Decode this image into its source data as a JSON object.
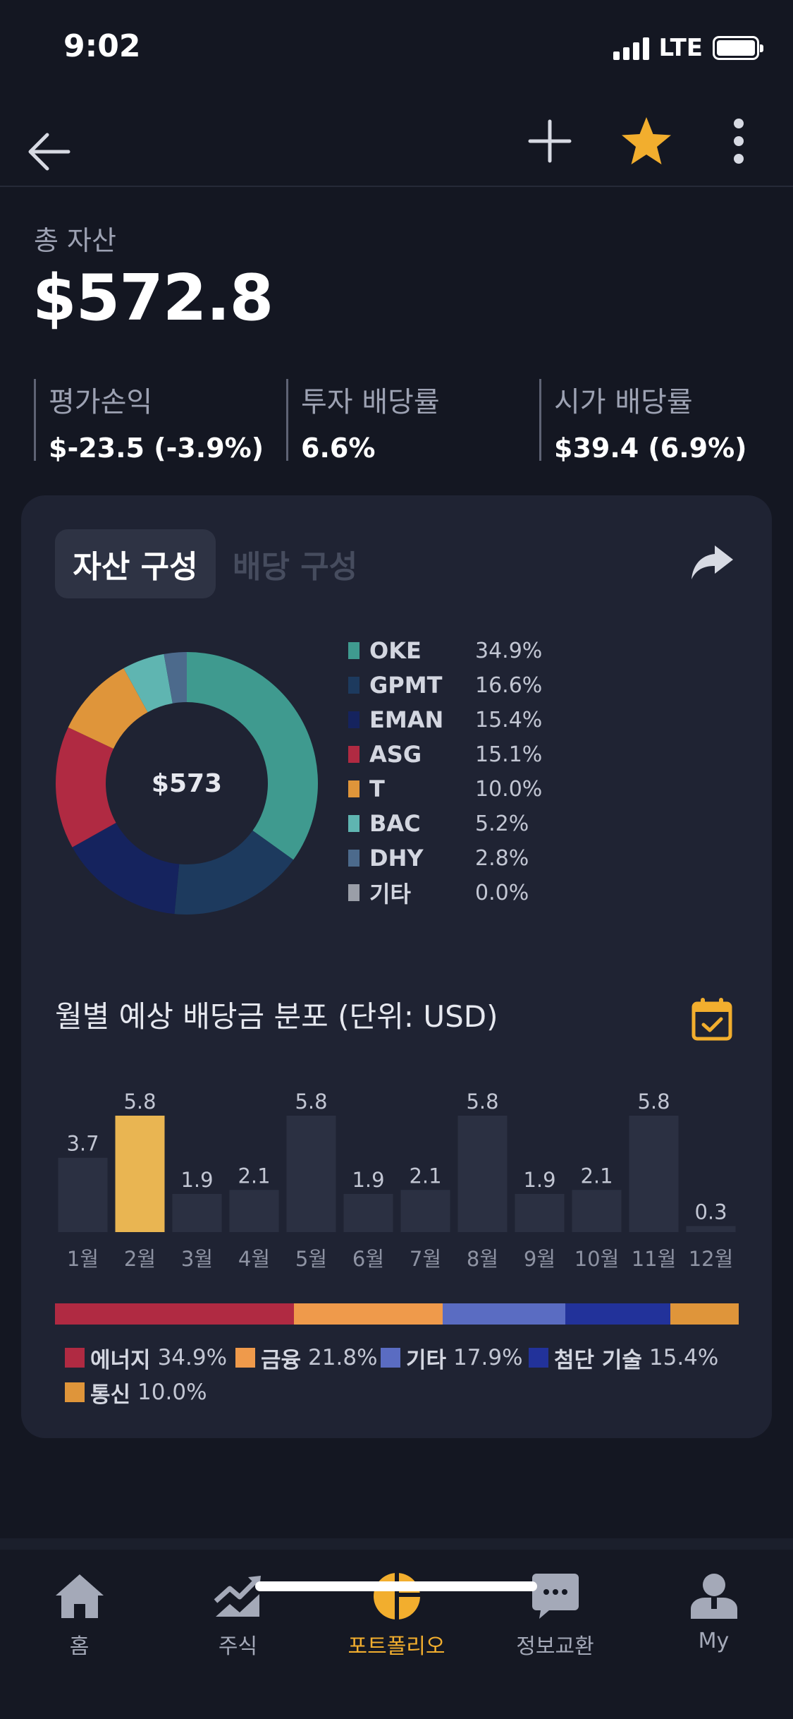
{
  "status_bar": {
    "time": "9:02",
    "network": "LTE"
  },
  "summary": {
    "total_label": "총 자산",
    "total_value": "$572.8",
    "metrics": [
      {
        "label": "평가손익",
        "value": "$-23.5 (-3.9%)"
      },
      {
        "label": "투자 배당률",
        "value": "6.6%"
      },
      {
        "label": "시가 배당률",
        "value": "$39.4 (6.9%)"
      }
    ]
  },
  "tabs": [
    {
      "label": "자산 구성",
      "active": true
    },
    {
      "label": "배당 구성",
      "active": false
    }
  ],
  "composition": {
    "center_label": "$573",
    "holdings": [
      {
        "name": "OKE",
        "pct": "34.9%",
        "share": 34.9,
        "color": "#3f9a8f"
      },
      {
        "name": "GPMT",
        "pct": "16.6%",
        "share": 16.6,
        "color": "#1d3a5e"
      },
      {
        "name": "EMAN",
        "pct": "15.4%",
        "share": 15.4,
        "color": "#15235e"
      },
      {
        "name": "ASG",
        "pct": "15.1%",
        "share": 15.1,
        "color": "#b02a42"
      },
      {
        "name": "T",
        "pct": "10.0%",
        "share": 10.0,
        "color": "#df953a"
      },
      {
        "name": "BAC",
        "pct": "5.2%",
        "share": 5.2,
        "color": "#5fb5b1"
      },
      {
        "name": "DHY",
        "pct": "2.8%",
        "share": 2.8,
        "color": "#4c6a8c"
      },
      {
        "name": "기타",
        "pct": "0.0%",
        "share": 0.0,
        "color": "#9a9ea8"
      }
    ]
  },
  "monthly": {
    "title": "월별 예상 배당금 분포 (단위: USD)"
  },
  "chart_data": {
    "type": "bar",
    "categories": [
      "1월",
      "2월",
      "3월",
      "4월",
      "5월",
      "6월",
      "7월",
      "8월",
      "9월",
      "10월",
      "11월",
      "12월"
    ],
    "values": [
      3.7,
      5.8,
      1.9,
      2.1,
      5.8,
      1.9,
      2.1,
      5.8,
      1.9,
      2.1,
      5.8,
      0.3
    ],
    "value_labels": [
      "3.7",
      "5.8",
      "1.9",
      "2.1",
      "5.8",
      "1.9",
      "2.1",
      "5.8",
      "1.9",
      "2.1",
      "5.8",
      "0.3"
    ],
    "highlight_index": 1,
    "highlight_color": "#e9b552",
    "bar_color": "#2b3042",
    "ylim": [
      0,
      5.8
    ],
    "title": "월별 예상 배당금 분포 (단위: USD)"
  },
  "sectors": [
    {
      "name": "에너지",
      "pct": "34.9%",
      "share": 34.9,
      "color": "#b02a42"
    },
    {
      "name": "금융",
      "pct": "21.8%",
      "share": 21.8,
      "color": "#ef9a4b"
    },
    {
      "name": "기타",
      "pct": "17.9%",
      "share": 17.9,
      "color": "#5a6cc2"
    },
    {
      "name": "첨단 기술",
      "pct": "15.4%",
      "share": 15.4,
      "color": "#22329a"
    },
    {
      "name": "통신",
      "pct": "10.0%",
      "share": 10.0,
      "color": "#df953a"
    }
  ],
  "bottom_nav": [
    {
      "label": "홈",
      "icon": "home-icon",
      "active": false
    },
    {
      "label": "주식",
      "icon": "stock-chart-icon",
      "active": false
    },
    {
      "label": "포트폴리오",
      "icon": "portfolio-pie-icon",
      "active": true
    },
    {
      "label": "정보교환",
      "icon": "chat-icon",
      "active": false
    },
    {
      "label": "My",
      "icon": "profile-icon",
      "active": false
    }
  ],
  "colors": {
    "accent": "#f2ae2e",
    "background": "#141722",
    "card": "#1f2333"
  }
}
